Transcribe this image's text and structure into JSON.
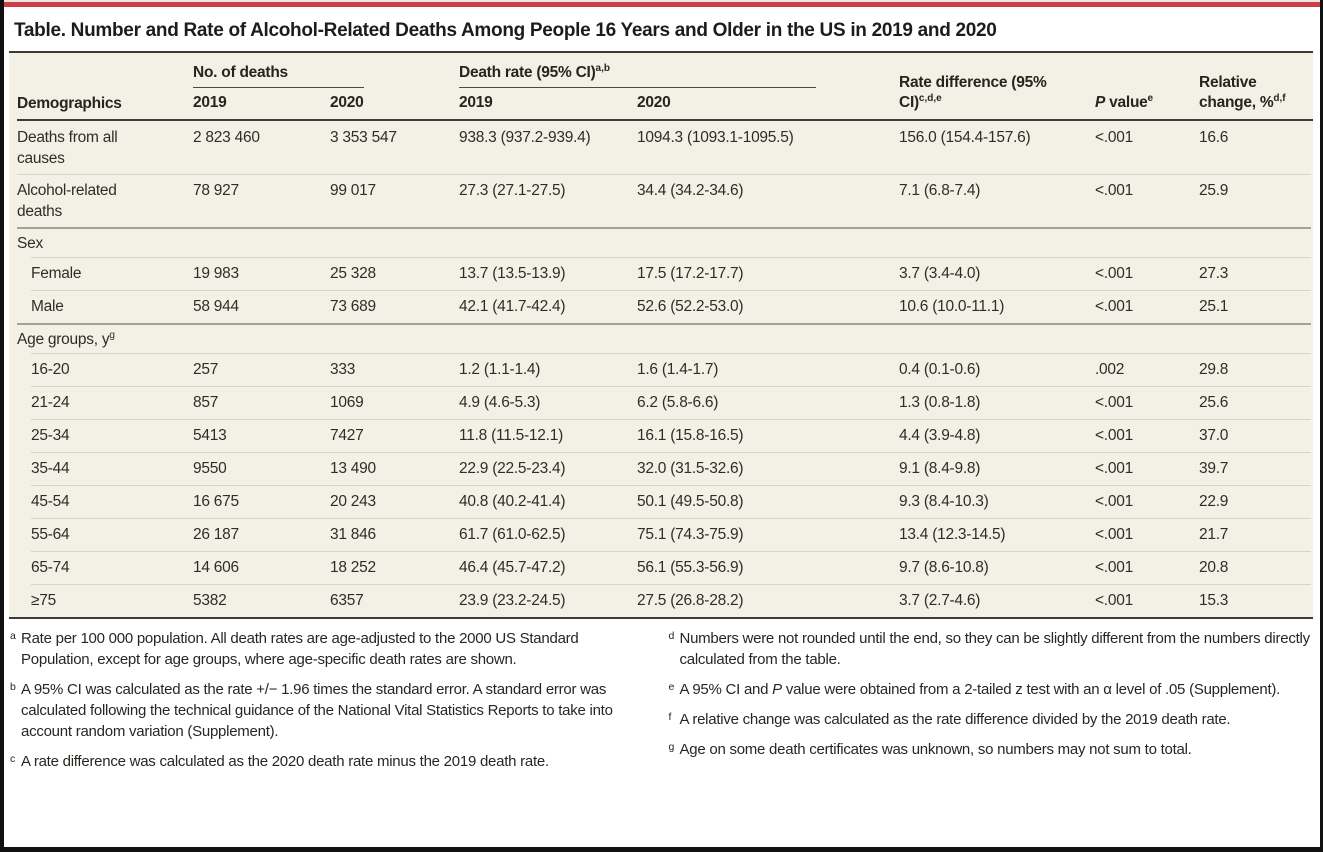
{
  "colors": {
    "accent_red": "#d03c44",
    "table_bg": "#f3f0e5",
    "rule_dark": "#3c3b38",
    "rule_medium": "#a5a194",
    "rule_light": "#d9d4c4"
  },
  "title": "Table. Number and Rate of Alcohol-Related Deaths Among People 16 Years and Older in the US in 2019 and 2020",
  "table": {
    "spanners": [
      {
        "label": "No. of deaths",
        "sup": ""
      },
      {
        "label": "Death rate (95% CI)",
        "sup": "a,b"
      }
    ],
    "columns": [
      {
        "label": "Demographics",
        "sup": ""
      },
      {
        "label": "2019"
      },
      {
        "label": "2020"
      },
      {
        "label": "2019"
      },
      {
        "label": "2020"
      },
      {
        "label": "Rate difference (95% CI)",
        "sup": "c,d,e"
      },
      {
        "label": "P value",
        "sup": "e"
      },
      {
        "label": "Relative change, %",
        "sup": "d,f"
      }
    ],
    "rows": [
      {
        "type": "data",
        "label": "Deaths from all causes",
        "sup": "",
        "indent": false,
        "sep": "none",
        "cells": [
          "2 823 460",
          "3 353 547",
          "938.3 (937.2-939.4)",
          "1094.3 (1093.1-1095.5)",
          "156.0 (154.4-157.6)",
          "<.001",
          "16.6"
        ]
      },
      {
        "type": "data",
        "label": "Alcohol-related deaths",
        "sup": "",
        "indent": false,
        "sep": "light-full",
        "cells": [
          "78 927",
          "99 017",
          "27.3 (27.1-27.5)",
          "34.4 (34.2-34.6)",
          "7.1 (6.8-7.4)",
          "<.001",
          "25.9"
        ]
      },
      {
        "type": "section",
        "label": "Sex",
        "sup": "",
        "sep": "heavy-full",
        "cells": []
      },
      {
        "type": "data",
        "label": "Female",
        "sup": "",
        "indent": true,
        "sep": "light-inset",
        "cells": [
          "19 983",
          "25 328",
          "13.7 (13.5-13.9)",
          "17.5 (17.2-17.7)",
          "3.7 (3.4-4.0)",
          "<.001",
          "27.3"
        ]
      },
      {
        "type": "data",
        "label": "Male",
        "sup": "",
        "indent": true,
        "sep": "light-inset",
        "cells": [
          "58 944",
          "73 689",
          "42.1 (41.7-42.4)",
          "52.6 (52.2-53.0)",
          "10.6 (10.0-11.1)",
          "<.001",
          "25.1"
        ]
      },
      {
        "type": "section",
        "label": "Age groups, y",
        "sup": "g",
        "sep": "heavy-full",
        "cells": []
      },
      {
        "type": "data",
        "label": "16-20",
        "sup": "",
        "indent": true,
        "sep": "light-inset",
        "cells": [
          "257",
          "333",
          "1.2 (1.1-1.4)",
          "1.6 (1.4-1.7)",
          "0.4 (0.1-0.6)",
          ".002",
          "29.8"
        ]
      },
      {
        "type": "data",
        "label": "21-24",
        "sup": "",
        "indent": true,
        "sep": "light-inset",
        "cells": [
          "857",
          "1069",
          "4.9 (4.6-5.3)",
          "6.2 (5.8-6.6)",
          "1.3 (0.8-1.8)",
          "<.001",
          "25.6"
        ]
      },
      {
        "type": "data",
        "label": "25-34",
        "sup": "",
        "indent": true,
        "sep": "light-inset",
        "cells": [
          "5413",
          "7427",
          "11.8 (11.5-12.1)",
          "16.1 (15.8-16.5)",
          "4.4 (3.9-4.8)",
          "<.001",
          "37.0"
        ]
      },
      {
        "type": "data",
        "label": "35-44",
        "sup": "",
        "indent": true,
        "sep": "light-inset",
        "cells": [
          "9550",
          "13 490",
          "22.9 (22.5-23.4)",
          "32.0 (31.5-32.6)",
          "9.1 (8.4-9.8)",
          "<.001",
          "39.7"
        ]
      },
      {
        "type": "data",
        "label": "45-54",
        "sup": "",
        "indent": true,
        "sep": "light-inset",
        "cells": [
          "16 675",
          "20 243",
          "40.8 (40.2-41.4)",
          "50.1 (49.5-50.8)",
          "9.3 (8.4-10.3)",
          "<.001",
          "22.9"
        ]
      },
      {
        "type": "data",
        "label": "55-64",
        "sup": "",
        "indent": true,
        "sep": "light-inset",
        "cells": [
          "26 187",
          "31 846",
          "61.7 (61.0-62.5)",
          "75.1 (74.3-75.9)",
          "13.4 (12.3-14.5)",
          "<.001",
          "21.7"
        ]
      },
      {
        "type": "data",
        "label": "65-74",
        "sup": "",
        "indent": true,
        "sep": "light-inset",
        "cells": [
          "14 606",
          "18 252",
          "46.4 (45.7-47.2)",
          "56.1 (55.3-56.9)",
          "9.7 (8.6-10.8)",
          "<.001",
          "20.8"
        ]
      },
      {
        "type": "data",
        "label": "≥75",
        "sup": "",
        "indent": true,
        "sep": "light-inset",
        "cells": [
          "5382",
          "6357",
          "23.9 (23.2-24.5)",
          "27.5 (26.8-28.2)",
          "3.7 (2.7-4.6)",
          "<.001",
          "15.3"
        ]
      }
    ]
  },
  "footnotes": {
    "left": [
      {
        "marker": "a",
        "text": "Rate per 100 000 population. All death rates are age-adjusted to the 2000 US Standard Population, except for age groups, where age-specific death rates are shown."
      },
      {
        "marker": "b",
        "text": "A 95% CI was calculated as the rate +/− 1.96 times the standard error. A standard error was calculated following the technical guidance of the National Vital Statistics Reports to take into account random variation (Supplement)."
      },
      {
        "marker": "c",
        "text": "A rate difference was calculated as the 2020 death rate minus the 2019 death rate."
      }
    ],
    "right": [
      {
        "marker": "d",
        "text": "Numbers were not rounded until the end, so they can be slightly different from the numbers directly calculated from the table."
      },
      {
        "marker": "e",
        "text": "A 95% CI and P value were obtained from a 2-tailed z test with an α level of .05 (Supplement)."
      },
      {
        "marker": "f",
        "text": "A relative change was calculated as the rate difference divided by the 2019 death rate."
      },
      {
        "marker": "g",
        "text": "Age on some death certificates was unknown, so numbers may not sum to total."
      }
    ]
  }
}
